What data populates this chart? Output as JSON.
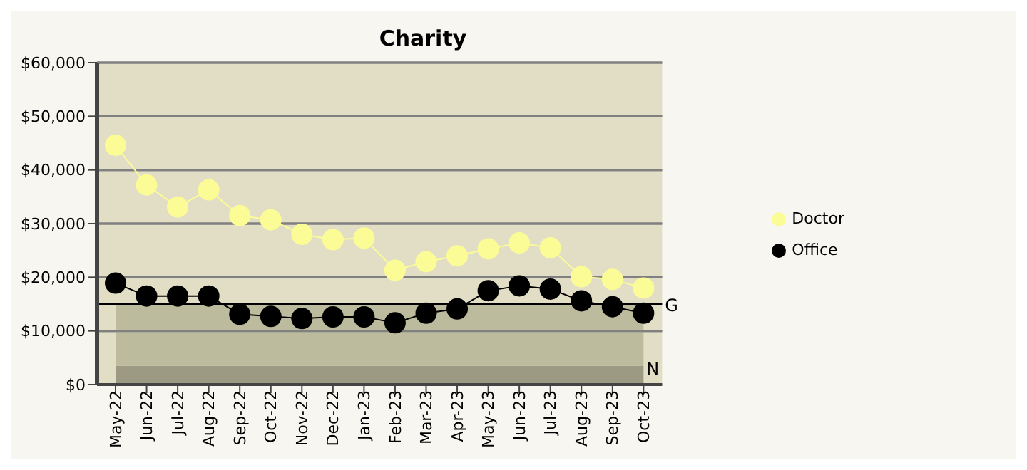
{
  "chart_data": {
    "type": "line",
    "title": "Charity",
    "categories": [
      "May-22",
      "Jun-22",
      "Jul-22",
      "Aug-22",
      "Sep-22",
      "Oct-22",
      "Nov-22",
      "Dec-22",
      "Jan-23",
      "Feb-23",
      "Mar-23",
      "Apr-23",
      "May-23",
      "Jun-23",
      "Jul-23",
      "Aug-23",
      "Sep-23",
      "Oct-23"
    ],
    "series": [
      {
        "name": "Doctor",
        "color": "#fcfc96",
        "values": [
          44600,
          37200,
          33100,
          36300,
          31500,
          30700,
          28000,
          27000,
          27300,
          21300,
          22900,
          24000,
          25300,
          26400,
          25500,
          20100,
          19600,
          18000
        ]
      },
      {
        "name": "Office",
        "color": "#000000",
        "values": [
          18900,
          16500,
          16500,
          16500,
          13100,
          12700,
          12300,
          12600,
          12600,
          11500,
          13300,
          14100,
          17500,
          18400,
          17800,
          15600,
          14500,
          13300
        ]
      }
    ],
    "ylim": [
      0,
      60000
    ],
    "yticks": [
      {
        "value": 0,
        "label": "$0"
      },
      {
        "value": 10000,
        "label": "$10,000"
      },
      {
        "value": 20000,
        "label": "$20,000"
      },
      {
        "value": 30000,
        "label": "$30,000"
      },
      {
        "value": 40000,
        "label": "$40,000"
      },
      {
        "value": 50000,
        "label": "$50,000"
      },
      {
        "value": 60000,
        "label": "$60,000"
      }
    ],
    "ref_lines": [
      {
        "axis": "y",
        "value": 15000,
        "label": "G",
        "color": "#000000"
      }
    ],
    "bands": [
      {
        "axis": "y",
        "from": 0,
        "to": 3500,
        "label": "N",
        "color": "#9c9a82"
      },
      {
        "axis": "y",
        "from": 3500,
        "to": 15000,
        "color": "#bcbb9e"
      }
    ],
    "grid": "y",
    "legend": "right",
    "marker": "circle",
    "line_style": "solid"
  }
}
